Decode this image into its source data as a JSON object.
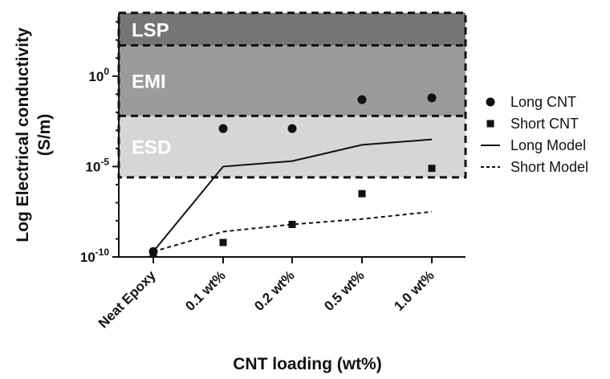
{
  "chart_data": {
    "type": "scatter",
    "title": "",
    "xlabel": "CNT loading (wt%)",
    "ylabel": "Log Electrical conductivity (S/m)",
    "ylabel_lines": [
      "Log Electrical conductivity",
      "(S/m)"
    ],
    "yscale": "log",
    "ylim_exponent": [
      -10,
      3
    ],
    "categories": [
      "Neat Epoxy",
      "0.1 wt%",
      "0.2 wt%",
      "0.5 wt%",
      "1.0 wt%"
    ],
    "y_ticks": [
      {
        "base": "10",
        "exp": "-10",
        "value_exponent": -10
      },
      {
        "base": "10",
        "exp": "-5",
        "value_exponent": -5
      },
      {
        "base": "10",
        "exp": "0",
        "value_exponent": 0
      }
    ],
    "bands": [
      {
        "label": "LSP",
        "from_exponent": 1.7,
        "to_exponent": 3.5,
        "color": "#757575"
      },
      {
        "label": "EMI",
        "from_exponent": -2.2,
        "to_exponent": 1.7,
        "color": "#9b9b9b"
      },
      {
        "label": "ESD",
        "from_exponent": -5.6,
        "to_exponent": -2.2,
        "color": "#d6d6d6"
      }
    ],
    "series": [
      {
        "name": "Long CNT",
        "kind": "points",
        "marker": "circle",
        "values": [
          -9.7,
          -2.9,
          -2.9,
          -1.3,
          -1.2
        ]
      },
      {
        "name": "Short CNT",
        "kind": "points",
        "marker": "square",
        "values": [
          -9.8,
          -9.2,
          -8.2,
          -6.5,
          -5.1
        ]
      },
      {
        "name": "Long Model",
        "kind": "line",
        "dash": "solid",
        "values": [
          -9.7,
          -5.0,
          -4.7,
          -3.8,
          -3.5
        ]
      },
      {
        "name": "Short Model",
        "kind": "line",
        "dash": "dashed",
        "values": [
          -9.7,
          -8.6,
          -8.2,
          -7.9,
          -7.5
        ]
      }
    ],
    "legend_position": "right"
  }
}
